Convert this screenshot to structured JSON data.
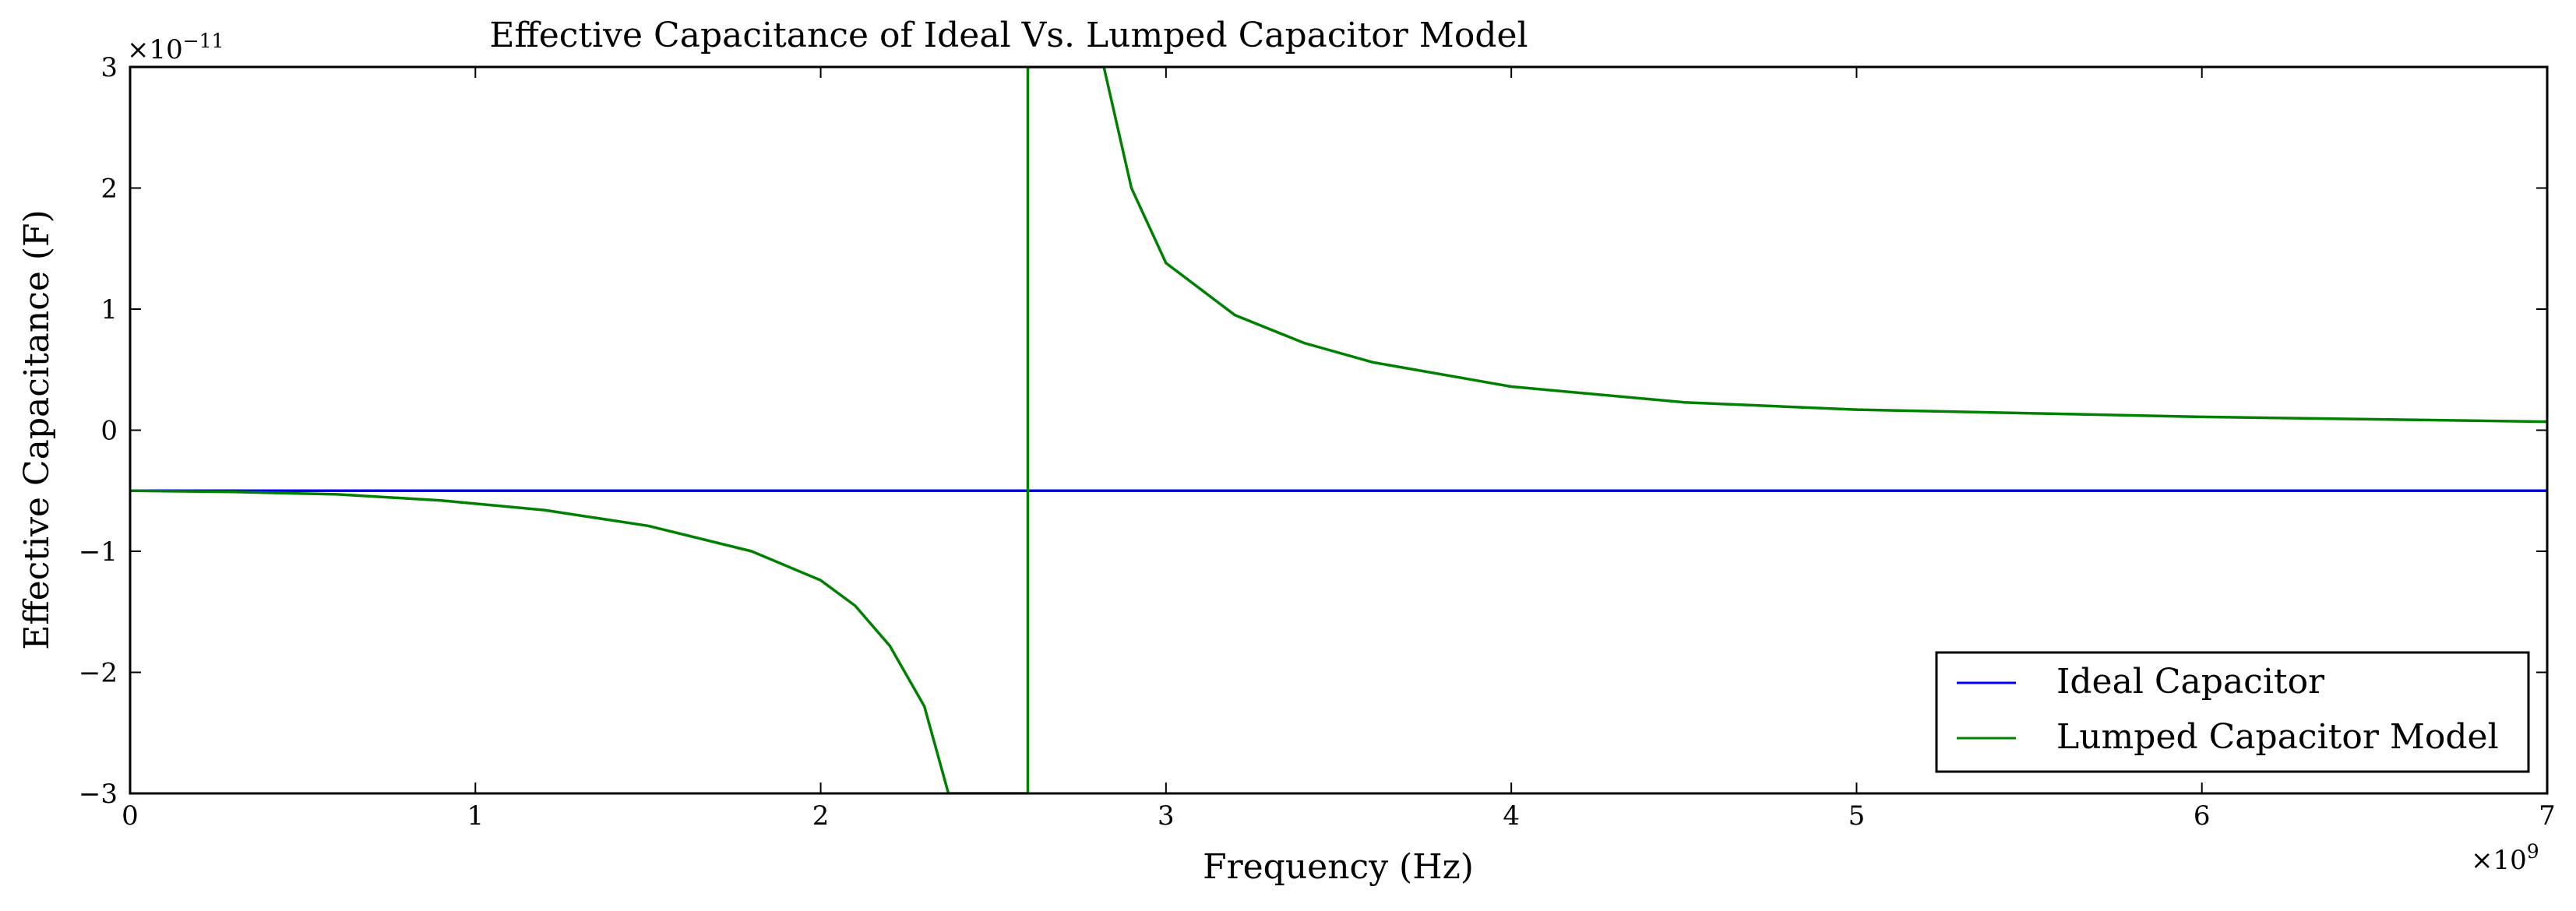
{
  "chart_data": {
    "type": "line",
    "title": "Effective Capacitance of Ideal Vs. Lumped Capacitor Model",
    "xlabel": "Frequency (Hz)",
    "ylabel": "Effective Capacitance (F)",
    "x_offset_label": "×10",
    "x_offset_exponent": "9",
    "y_offset_label": "×10",
    "y_offset_exponent": "−11",
    "xlim": [
      0,
      7
    ],
    "ylim": [
      -3,
      3
    ],
    "x_ticks": [
      0,
      1,
      2,
      3,
      4,
      5,
      6,
      7
    ],
    "x_tick_labels": [
      "0",
      "1",
      "2",
      "3",
      "4",
      "5",
      "6",
      "7"
    ],
    "y_ticks": [
      -3,
      -2,
      -1,
      0,
      1,
      2,
      3
    ],
    "y_tick_labels": [
      "−3",
      "−2",
      "−1",
      "0",
      "1",
      "2",
      "3"
    ],
    "grid": false,
    "legend_position": "lower-right",
    "series": [
      {
        "name": "Ideal Capacitor",
        "color": "#0000ff",
        "x": [
          0,
          7
        ],
        "y": [
          -0.5,
          -0.5
        ]
      },
      {
        "name": "Lumped Capacitor Model",
        "color": "#008000",
        "x": [
          0,
          0.3,
          0.6,
          0.9,
          1.2,
          1.5,
          1.8,
          2.0,
          2.1,
          2.2,
          2.3,
          2.37,
          2.6,
          2.6,
          2.82,
          2.9,
          3.0,
          3.2,
          3.4,
          3.6,
          4.0,
          4.5,
          5.0,
          5.5,
          6.0,
          6.5,
          7.0
        ],
        "y": [
          -0.5,
          -0.51,
          -0.53,
          -0.58,
          -0.66,
          -0.79,
          -1.0,
          -1.24,
          -1.45,
          -1.78,
          -2.28,
          -3.0,
          -3.0,
          3.0,
          3.0,
          2.0,
          1.38,
          0.95,
          0.72,
          0.56,
          0.36,
          0.23,
          0.17,
          0.14,
          0.11,
          0.09,
          0.07
        ]
      }
    ]
  }
}
